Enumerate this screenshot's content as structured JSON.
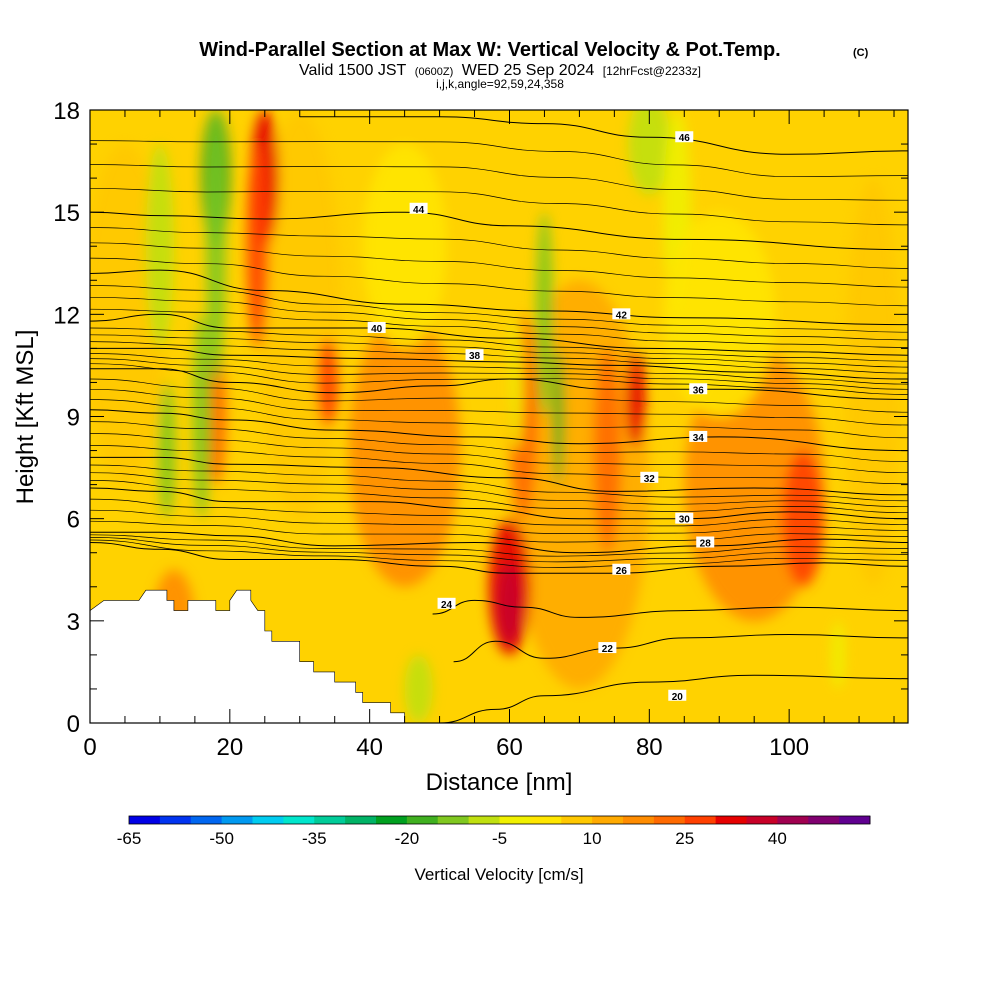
{
  "chart_data": {
    "type": "heatmap",
    "title": "Wind-Parallel Section at Max W: Vertical Velocity & Pot.Temp.",
    "title_mark": "(C)",
    "subtitle_parts": [
      "Valid 1500 JST",
      "(0600Z)",
      "WED 25 Sep 2024",
      "[12hrFcst@2233z]"
    ],
    "subtitle2": "i,j,k,angle=92,59,24,358",
    "xlabel": "Distance [nm]",
    "ylabel": "Height [Kft MSL]",
    "xlim": [
      0,
      117
    ],
    "ylim": [
      0,
      18
    ],
    "xticks": [
      0,
      20,
      40,
      60,
      80,
      100
    ],
    "yticks": [
      0,
      3,
      6,
      9,
      12,
      15,
      18
    ],
    "colorbar": {
      "label": "Vertical Velocity [cm/s]",
      "tick_labels": [
        "-65",
        "-50",
        "-35",
        "-20",
        "-5",
        "10",
        "25",
        "40"
      ],
      "levels": [
        -65,
        -60,
        -55,
        -50,
        -45,
        -40,
        -35,
        -30,
        -25,
        -20,
        -15,
        -10,
        -5,
        0,
        5,
        10,
        15,
        20,
        25,
        30,
        35,
        40,
        45
      ],
      "colors": [
        "#0000e6",
        "#0033f0",
        "#0066f0",
        "#0099f0",
        "#00ccf0",
        "#00e6cc",
        "#00cc99",
        "#00b366",
        "#00a020",
        "#40b020",
        "#80c820",
        "#c0e010",
        "#f0f000",
        "#ffe600",
        "#ffc800",
        "#ffaa00",
        "#ff8c00",
        "#ff6a00",
        "#ff4000",
        "#e60000",
        "#c80028",
        "#a00050",
        "#800070",
        "#600090"
      ]
    },
    "theta_contours": [
      {
        "level": 20,
        "label": "20",
        "points": [
          [
            50,
            0
          ],
          [
            58,
            0.4
          ],
          [
            65,
            0.8
          ],
          [
            80,
            1.2
          ],
          [
            95,
            1.4
          ],
          [
            117,
            1.3
          ]
        ],
        "label_at": [
          84,
          0.8
        ]
      },
      {
        "level": 22,
        "label": "22",
        "points": [
          [
            52,
            1.8
          ],
          [
            58,
            2.4
          ],
          [
            65,
            1.9
          ],
          [
            75,
            2.2
          ],
          [
            85,
            2.5
          ],
          [
            100,
            2.6
          ],
          [
            117,
            2.5
          ]
        ],
        "label_at": [
          74,
          2.2
        ]
      },
      {
        "level": 24,
        "label": "24",
        "points": [
          [
            49,
            3.2
          ],
          [
            55,
            3.6
          ],
          [
            62,
            3.4
          ],
          [
            70,
            3.1
          ],
          [
            85,
            3.3
          ],
          [
            100,
            3.4
          ],
          [
            117,
            3.3
          ]
        ],
        "label_at": [
          51,
          3.5
        ]
      },
      {
        "level": 26,
        "label": "26",
        "points": [
          [
            0,
            5.3
          ],
          [
            10,
            5.1
          ],
          [
            20,
            4.8
          ],
          [
            35,
            4.8
          ],
          [
            50,
            4.6
          ],
          [
            60,
            4.4
          ],
          [
            75,
            4.4
          ],
          [
            90,
            4.6
          ],
          [
            105,
            4.7
          ],
          [
            117,
            4.6
          ]
        ],
        "label_at": [
          76,
          4.5
        ]
      },
      {
        "level": 28,
        "label": "28",
        "points": [
          [
            0,
            5.6
          ],
          [
            10,
            5.6
          ],
          [
            20,
            5.5
          ],
          [
            35,
            5.2
          ],
          [
            55,
            5.3
          ],
          [
            70,
            5.0
          ],
          [
            88,
            5.2
          ],
          [
            105,
            5.4
          ],
          [
            117,
            5.3
          ]
        ],
        "label_at": [
          88,
          5.3
        ]
      },
      {
        "level": 30,
        "label": "30",
        "points": [
          [
            0,
            6.9
          ],
          [
            10,
            6.8
          ],
          [
            20,
            6.5
          ],
          [
            40,
            6.5
          ],
          [
            55,
            6.3
          ],
          [
            70,
            6.0
          ],
          [
            85,
            6.0
          ],
          [
            100,
            6.2
          ],
          [
            117,
            6.0
          ]
        ],
        "label_at": [
          85,
          6.0
        ]
      },
      {
        "level": 32,
        "label": "32",
        "points": [
          [
            0,
            7.8
          ],
          [
            10,
            7.8
          ],
          [
            20,
            7.6
          ],
          [
            40,
            7.5
          ],
          [
            60,
            7.2
          ],
          [
            75,
            6.8
          ],
          [
            95,
            6.9
          ],
          [
            117,
            6.7
          ]
        ],
        "label_at": [
          80,
          7.2
        ]
      },
      {
        "level": 34,
        "label": "34",
        "points": [
          [
            0,
            9.2
          ],
          [
            10,
            9.1
          ],
          [
            20,
            8.9
          ],
          [
            35,
            8.6
          ],
          [
            55,
            8.4
          ],
          [
            70,
            8.2
          ],
          [
            90,
            8.4
          ],
          [
            117,
            8.0
          ]
        ],
        "label_at": [
          87,
          8.4
        ]
      },
      {
        "level": 36,
        "label": "36",
        "points": [
          [
            0,
            10.4
          ],
          [
            10,
            10.4
          ],
          [
            20,
            10.0
          ],
          [
            35,
            9.7
          ],
          [
            50,
            9.9
          ],
          [
            60,
            10.1
          ],
          [
            75,
            9.8
          ],
          [
            90,
            9.8
          ],
          [
            117,
            9.5
          ]
        ],
        "label_at": [
          87,
          9.8
        ]
      },
      {
        "level": 38,
        "label": "38",
        "points": [
          [
            0,
            11.0
          ],
          [
            10,
            11.0
          ],
          [
            20,
            10.8
          ],
          [
            40,
            10.7
          ],
          [
            60,
            10.6
          ],
          [
            75,
            10.5
          ],
          [
            95,
            10.3
          ],
          [
            117,
            10.1
          ]
        ],
        "label_at": [
          55,
          10.8
        ]
      },
      {
        "level": 40,
        "label": "40",
        "points": [
          [
            0,
            11.8
          ],
          [
            10,
            12.0
          ],
          [
            20,
            11.6
          ],
          [
            40,
            11.6
          ],
          [
            60,
            11.3
          ],
          [
            80,
            11.0
          ],
          [
            100,
            10.9
          ],
          [
            117,
            10.8
          ]
        ],
        "label_at": [
          41,
          11.6
        ]
      },
      {
        "level": 42,
        "label": "42",
        "points": [
          [
            0,
            13.2
          ],
          [
            10,
            13.3
          ],
          [
            25,
            12.7
          ],
          [
            45,
            12.3
          ],
          [
            65,
            12.1
          ],
          [
            85,
            11.9
          ],
          [
            117,
            11.7
          ]
        ],
        "label_at": [
          76,
          12.0
        ]
      },
      {
        "level": 44,
        "label": "44",
        "points": [
          [
            0,
            15.0
          ],
          [
            10,
            14.9
          ],
          [
            25,
            14.8
          ],
          [
            45,
            15.0
          ],
          [
            60,
            14.6
          ],
          [
            85,
            14.2
          ],
          [
            117,
            13.9
          ]
        ],
        "label_at": [
          47,
          15.1
        ]
      },
      {
        "level": 46,
        "label": "46",
        "points": [
          [
            30,
            17.8
          ],
          [
            50,
            17.8
          ],
          [
            65,
            17.6
          ],
          [
            80,
            17.2
          ],
          [
            100,
            16.7
          ],
          [
            117,
            16.8
          ]
        ],
        "label_at": [
          85,
          17.2
        ]
      }
    ],
    "terrain_kft": [
      [
        0,
        3.3
      ],
      [
        2,
        3.6
      ],
      [
        7,
        3.6
      ],
      [
        8,
        3.9
      ],
      [
        11,
        3.9
      ],
      [
        11,
        3.6
      ],
      [
        12,
        3.6
      ],
      [
        12,
        3.3
      ],
      [
        14,
        3.3
      ],
      [
        14,
        3.6
      ],
      [
        18,
        3.6
      ],
      [
        18,
        3.3
      ],
      [
        20,
        3.3
      ],
      [
        20,
        3.6
      ],
      [
        21,
        3.9
      ],
      [
        23,
        3.9
      ],
      [
        23,
        3.6
      ],
      [
        24,
        3.3
      ],
      [
        25,
        3.3
      ],
      [
        25,
        2.7
      ],
      [
        26,
        2.7
      ],
      [
        26,
        2.4
      ],
      [
        30,
        2.4
      ],
      [
        30,
        2.1
      ],
      [
        30,
        1.8
      ],
      [
        32,
        1.8
      ],
      [
        32,
        1.5
      ],
      [
        35,
        1.5
      ],
      [
        35,
        1.2
      ],
      [
        38,
        1.2
      ],
      [
        38,
        0.9
      ],
      [
        39,
        0.9
      ],
      [
        39,
        0.6
      ],
      [
        43,
        0.6
      ],
      [
        43,
        0.3
      ],
      [
        45,
        0.3
      ],
      [
        45,
        0.0
      ],
      [
        48,
        0.0
      ]
    ]
  }
}
